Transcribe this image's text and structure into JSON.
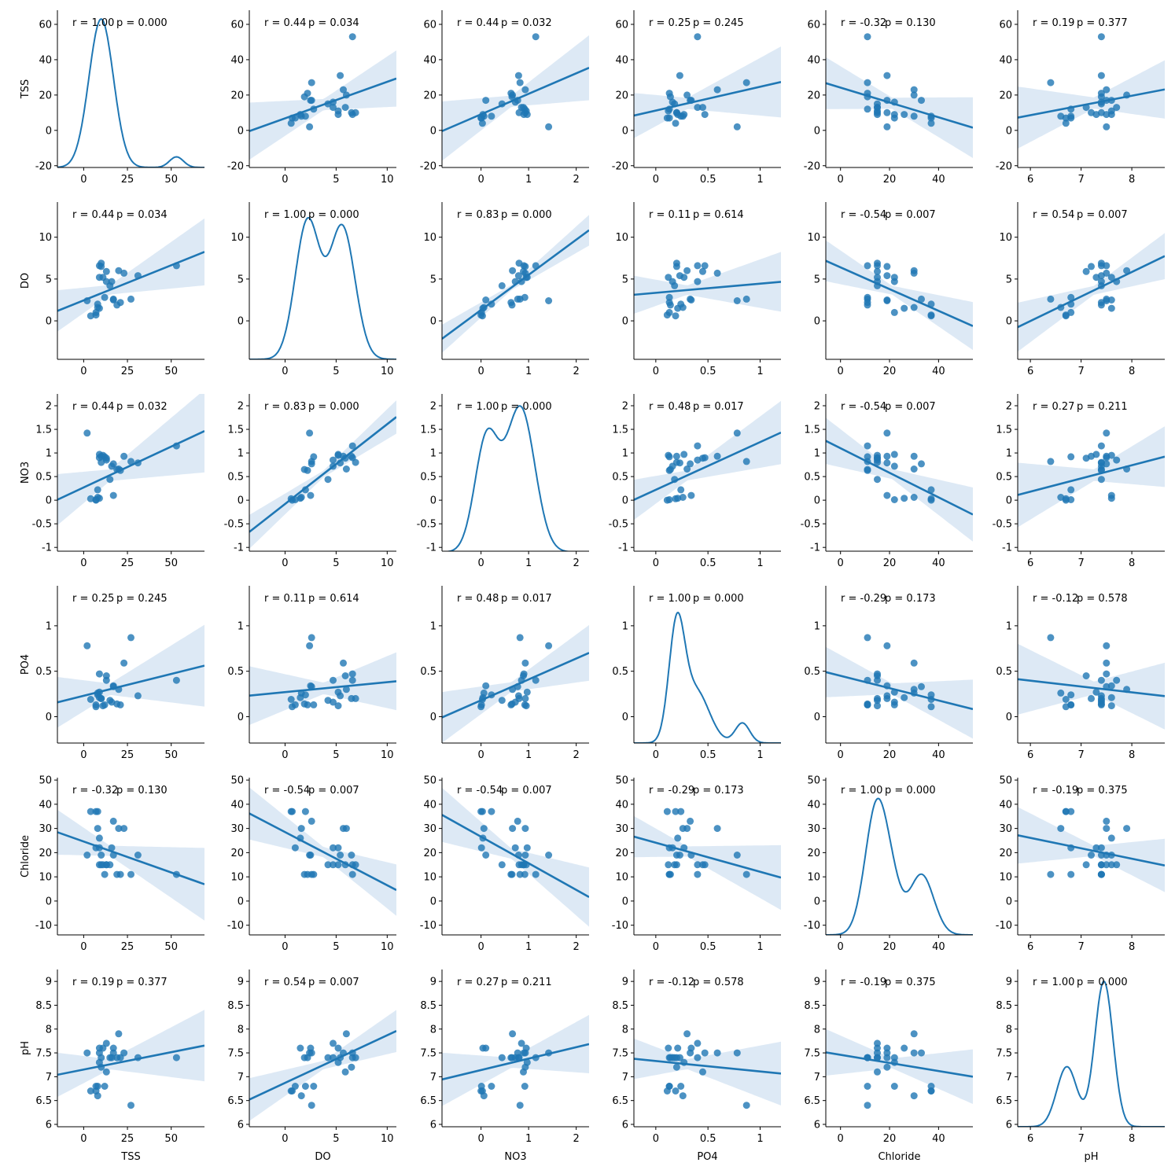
{
  "chart_data": {
    "type": "pairgrid",
    "variables": [
      "TSS",
      "DO",
      "NO3",
      "PO4",
      "Chloride",
      "pH"
    ],
    "diagonal": "kde",
    "off_diagonal": "scatter with linear regression fit and 95% confidence band",
    "colors": {
      "points": "#1f77b4",
      "line": "#1f77b4",
      "band": "#a9c8e6"
    },
    "axes": {
      "TSS": {
        "lim": [
          -15,
          69
        ],
        "ylim": [
          -21,
          68
        ],
        "ticks": [
          0,
          25,
          50
        ],
        "yticks": [
          -20,
          0,
          20,
          40,
          60
        ]
      },
      "DO": {
        "lim": [
          -3.5,
          10.9
        ],
        "ylim": [
          -4.6,
          14.2
        ],
        "ticks": [
          0,
          5,
          10
        ],
        "yticks": [
          0,
          5,
          10
        ]
      },
      "NO3": {
        "lim": [
          -0.82,
          2.27
        ],
        "ylim": [
          -1.08,
          2.25
        ],
        "ticks": [
          0,
          1,
          2
        ],
        "yticks": [
          -1.0,
          -0.5,
          0.0,
          0.5,
          1.0,
          1.5,
          2.0
        ]
      },
      "PO4": {
        "lim": [
          -0.21,
          1.2
        ],
        "ylim": [
          -0.29,
          1.44
        ],
        "ticks": [
          0.0,
          0.5,
          1.0
        ],
        "yticks": [
          0.0,
          0.5,
          1.0
        ]
      },
      "Chloride": {
        "lim": [
          -6,
          54
        ],
        "ylim": [
          -14,
          51
        ],
        "ticks": [
          0,
          20,
          40
        ],
        "yticks": [
          -10,
          0,
          10,
          20,
          30,
          40,
          50
        ]
      },
      "pH": {
        "lim": [
          5.75,
          8.65
        ],
        "ylim": [
          5.95,
          9.25
        ],
        "ticks": [
          6,
          7,
          8
        ],
        "yticks": [
          6.0,
          6.5,
          7.0,
          7.5,
          8.0,
          8.5,
          9.0
        ]
      }
    },
    "samples": {
      "TSS": [
        53,
        31,
        27,
        23,
        21,
        20,
        19,
        17,
        17,
        16,
        15,
        13,
        13,
        12,
        11,
        10,
        10,
        9,
        9,
        9,
        8,
        8,
        7,
        7,
        4,
        2
      ],
      "DO": [
        6.6,
        5.4,
        2.6,
        5.7,
        2.2,
        6.0,
        1.9,
        2.6,
        2.5,
        4.7,
        4.2,
        5.9,
        4.7,
        2.8,
        5.2,
        6.9,
        6.5,
        6.6,
        5.2,
        1.5,
        2.0,
        1.6,
        0.7,
        1.0,
        0.6,
        2.4
      ],
      "NO3": [
        1.15,
        0.79,
        0.82,
        0.93,
        0.63,
        0.66,
        0.65,
        0.77,
        0.1,
        0.72,
        0.44,
        0.89,
        0.85,
        0.92,
        0.95,
        0.8,
        0.93,
        0.9,
        0.97,
        0.04,
        0.22,
        0.06,
        0.0,
        0.01,
        0.03,
        1.42
      ],
      "PO4": [
        0.4,
        0.23,
        0.87,
        0.59,
        0.13,
        0.3,
        0.14,
        0.33,
        0.34,
        0.16,
        0.18,
        0.45,
        0.4,
        0.13,
        0.12,
        0.2,
        0.2,
        0.47,
        0.27,
        0.21,
        0.24,
        0.26,
        0.11,
        0.13,
        0.19,
        0.78
      ],
      "Chloride": [
        11,
        19,
        11,
        30,
        11,
        30,
        11,
        33,
        19,
        22,
        15,
        15,
        15,
        11,
        15,
        15,
        19,
        15,
        22,
        26,
        37,
        30,
        37,
        22,
        37,
        19
      ],
      "pH": [
        7.4,
        7.4,
        6.4,
        7.5,
        7.4,
        7.9,
        7.4,
        7.5,
        7.6,
        7.4,
        7.4,
        7.1,
        7.7,
        6.8,
        7.6,
        7.4,
        7.2,
        7.5,
        7.3,
        7.6,
        6.8,
        6.6,
        6.7,
        6.8,
        6.7,
        7.5
      ]
    },
    "fits": {
      "TSS~DO": {
        "slope": 2.07,
        "intercept": 6.8,
        "band": 9.0
      },
      "TSS~NO3": {
        "slope": 11.6,
        "intercept": 9.1,
        "band": 9.0
      },
      "TSS~PO4": {
        "slope": 13.5,
        "intercept": 11.2,
        "band": 9.0
      },
      "TSS~Chloride": {
        "slope": -0.42,
        "intercept": 24.2,
        "band": 9.0
      },
      "TSS~pH": {
        "slope": 5.5,
        "intercept": -24.4,
        "band": 9.0
      },
      "DO~TSS": {
        "slope": 0.084,
        "intercept": 2.45,
        "band": 1.6
      },
      "DO~NO3": {
        "slope": 4.2,
        "intercept": 1.3,
        "band": 0.9
      },
      "DO~PO4": {
        "slope": 1.1,
        "intercept": 3.35,
        "band": 1.6
      },
      "DO~Chloride": {
        "slope": -0.13,
        "intercept": 6.4,
        "band": 1.5
      },
      "DO~pH": {
        "slope": 2.93,
        "intercept": -17.6,
        "band": 1.5
      },
      "NO3~TSS": {
        "slope": 0.0173,
        "intercept": 0.27,
        "band": 0.35
      },
      "NO3~DO": {
        "slope": 0.169,
        "intercept": -0.08,
        "band": 0.2
      },
      "NO3~PO4": {
        "slope": 1.01,
        "intercept": 0.22,
        "band": 0.3
      },
      "NO3~Chloride": {
        "slope": -0.026,
        "intercept": 1.1,
        "band": 0.3
      },
      "NO3~pH": {
        "slope": 0.28,
        "intercept": -1.5,
        "band": 0.35
      },
      "PO4~TSS": {
        "slope": 0.0048,
        "intercept": 0.23,
        "band": 0.18
      },
      "PO4~DO": {
        "slope": 0.011,
        "intercept": 0.27,
        "band": 0.18
      },
      "PO4~NO3": {
        "slope": 0.23,
        "intercept": 0.18,
        "band": 0.15
      },
      "PO4~Chloride": {
        "slope": -0.0068,
        "intercept": 0.45,
        "band": 0.17
      },
      "PO4~pH": {
        "slope": -0.064,
        "intercept": 0.78,
        "band": 0.2
      },
      "Chloride~TSS": {
        "slope": -0.256,
        "intercept": 24.6,
        "band": 6.0
      },
      "Chloride~DO": {
        "slope": -2.2,
        "intercept": 28.5,
        "band": 6.0
      },
      "Chloride~NO3": {
        "slope": -11.0,
        "intercept": 26.6,
        "band": 6.0
      },
      "Chloride~PO4": {
        "slope": -12.0,
        "intercept": 24.1,
        "band": 6.0
      },
      "Chloride~pH": {
        "slope": -4.3,
        "intercept": 51.9,
        "band": 6.0
      },
      "pH~TSS": {
        "slope": 0.0073,
        "intercept": 7.15,
        "band": 0.3
      },
      "pH~DO": {
        "slope": 0.1,
        "intercept": 6.87,
        "band": 0.25
      },
      "pH~NO3": {
        "slope": 0.24,
        "intercept": 7.14,
        "band": 0.3
      },
      "pH~PO4": {
        "slope": -0.22,
        "intercept": 7.33,
        "band": 0.3
      },
      "pH~Chloride": {
        "slope": -0.0085,
        "intercept": 7.46,
        "band": 0.3
      }
    },
    "kde": {
      "TSS": {
        "peaks": [
          {
            "center": 10,
            "sd": 7,
            "amp": 84
          },
          {
            "center": 53,
            "sd": 4,
            "amp": 6
          }
        ],
        "baseline": -21
      },
      "DO": {
        "peaks": [
          {
            "center": 2.2,
            "sd": 1.2,
            "amp": 16.5
          },
          {
            "center": 5.6,
            "sd": 1.25,
            "amp": 15.8
          }
        ],
        "baseline": -4.6
      },
      "NO3": {
        "peaks": [
          {
            "center": 0.12,
            "sd": 0.25,
            "amp": 2.4
          },
          {
            "center": 0.83,
            "sd": 0.3,
            "amp": 3.05
          }
        ],
        "baseline": -1.1
      },
      "PO4": {
        "peaks": [
          {
            "center": 0.2,
            "sd": 0.075,
            "amp": 1.2
          },
          {
            "center": 0.38,
            "sd": 0.13,
            "amp": 0.58
          },
          {
            "center": 0.83,
            "sd": 0.07,
            "amp": 0.22
          }
        ],
        "baseline": -0.29
      },
      "Chloride": {
        "peaks": [
          {
            "center": 15,
            "sd": 4.8,
            "amp": 55
          },
          {
            "center": 22,
            "sd": 3.5,
            "amp": 9
          },
          {
            "center": 33,
            "sd": 5,
            "amp": 25
          }
        ],
        "baseline": -14
      },
      "pH": {
        "peaks": [
          {
            "center": 6.72,
            "sd": 0.2,
            "amp": 1.26
          },
          {
            "center": 7.45,
            "sd": 0.18,
            "amp": 3.05
          }
        ],
        "baseline": 5.95
      }
    },
    "annotations": [
      [
        "r = 1.00",
        "p = 0.000",
        "r = 0.44",
        "p = 0.034",
        "r = 0.44",
        "p = 0.032",
        "r = 0.25",
        "p = 0.245",
        "r = -0.32",
        "p = 0.130",
        "r = 0.19",
        "p = 0.377"
      ],
      [
        "r = 0.44",
        "p = 0.034",
        "r = 1.00",
        "p = 0.000",
        "r = 0.83",
        "p = 0.000",
        "r = 0.11",
        "p = 0.614",
        "r = -0.54",
        "p = 0.007",
        "r = 0.54",
        "p = 0.007"
      ],
      [
        "r = 0.44",
        "p = 0.032",
        "r = 0.83",
        "p = 0.000",
        "r = 1.00",
        "p = 0.000",
        "r = 0.48",
        "p = 0.017",
        "r = -0.54",
        "p = 0.007",
        "r = 0.27",
        "p = 0.211"
      ],
      [
        "r = 0.25",
        "p = 0.245",
        "r = 0.11",
        "p = 0.614",
        "r = 0.48",
        "p = 0.017",
        "r = 1.00",
        "p = 0.000",
        "r = -0.29",
        "p = 0.173",
        "r = -0.12",
        "p = 0.578"
      ],
      [
        "r = -0.32",
        "p = 0.130",
        "r = -0.54",
        "p = 0.007",
        "r = -0.54",
        "p = 0.007",
        "r = -0.29",
        "p = 0.173",
        "r = 1.00",
        "p = 0.000",
        "r = -0.19",
        "p = 0.375"
      ],
      [
        "r = 0.19",
        "p = 0.377",
        "r = 0.54",
        "p = 0.007",
        "r = 0.27",
        "p = 0.211",
        "r = -0.12",
        "p = 0.578",
        "r = -0.19",
        "p = 0.375",
        "r = 1.00",
        "p = 0.000"
      ]
    ]
  }
}
